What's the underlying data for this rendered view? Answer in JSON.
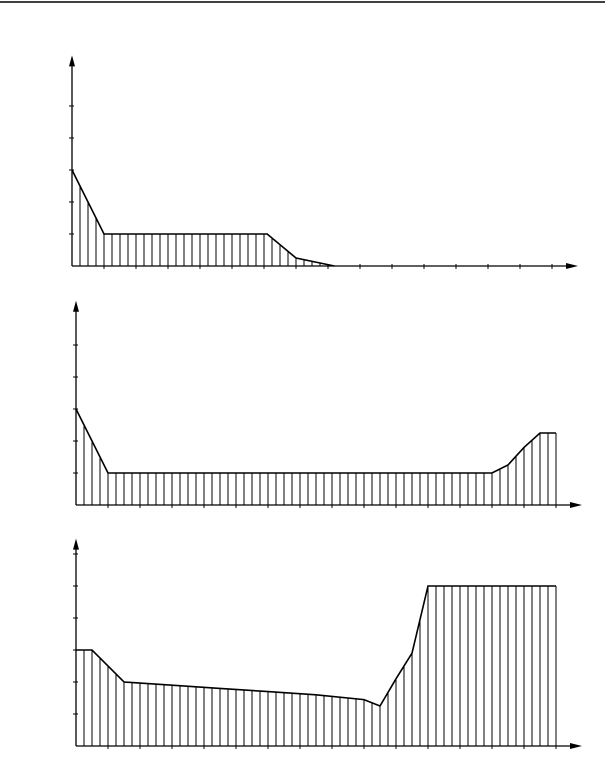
{
  "chart_data": [
    {
      "type": "line",
      "x": [
        0,
        1,
        6.1,
        7,
        8.2
      ],
      "values": [
        3,
        1,
        1,
        0.25,
        0
      ],
      "color": "#000000",
      "xlim": [
        0,
        15.5
      ],
      "xticks": [
        1,
        2,
        3,
        4,
        5,
        6,
        7,
        8,
        9,
        10,
        11,
        12,
        13,
        14,
        15
      ],
      "ylim": [
        0,
        6.3
      ],
      "yticks": [
        1,
        2,
        3,
        4,
        5
      ]
    },
    {
      "type": "line",
      "x": [
        0,
        1,
        13,
        13.5,
        14,
        14.5,
        15
      ],
      "values": [
        3,
        1,
        1,
        1.25,
        1.8,
        2.25,
        2.25
      ],
      "color": "#000000",
      "xlim": [
        0,
        15.5
      ],
      "xticks": [
        1,
        2,
        3,
        4,
        5,
        6,
        7,
        8,
        9,
        10,
        11,
        12,
        13,
        14,
        15
      ],
      "ylim": [
        0,
        6.1
      ],
      "yticks": [
        1,
        2,
        3,
        4,
        5
      ]
    },
    {
      "type": "line",
      "x": [
        0,
        0.5,
        1.5,
        3,
        4.5,
        6,
        7.5,
        9,
        9.5,
        10,
        10.5,
        11,
        15
      ],
      "values": [
        3,
        3,
        2,
        1.9,
        1.8,
        1.7,
        1.6,
        1.45,
        1.25,
        2.1,
        2.9,
        5,
        5
      ],
      "color": "#000000",
      "xlim": [
        0,
        15.5
      ],
      "xticks": [
        1,
        2,
        3,
        4,
        5,
        6,
        7,
        8,
        9,
        10,
        11,
        12,
        13,
        14,
        15
      ],
      "ylim": [
        0,
        6.2
      ],
      "yticks": [
        1,
        2,
        3,
        4,
        5,
        6
      ]
    }
  ]
}
